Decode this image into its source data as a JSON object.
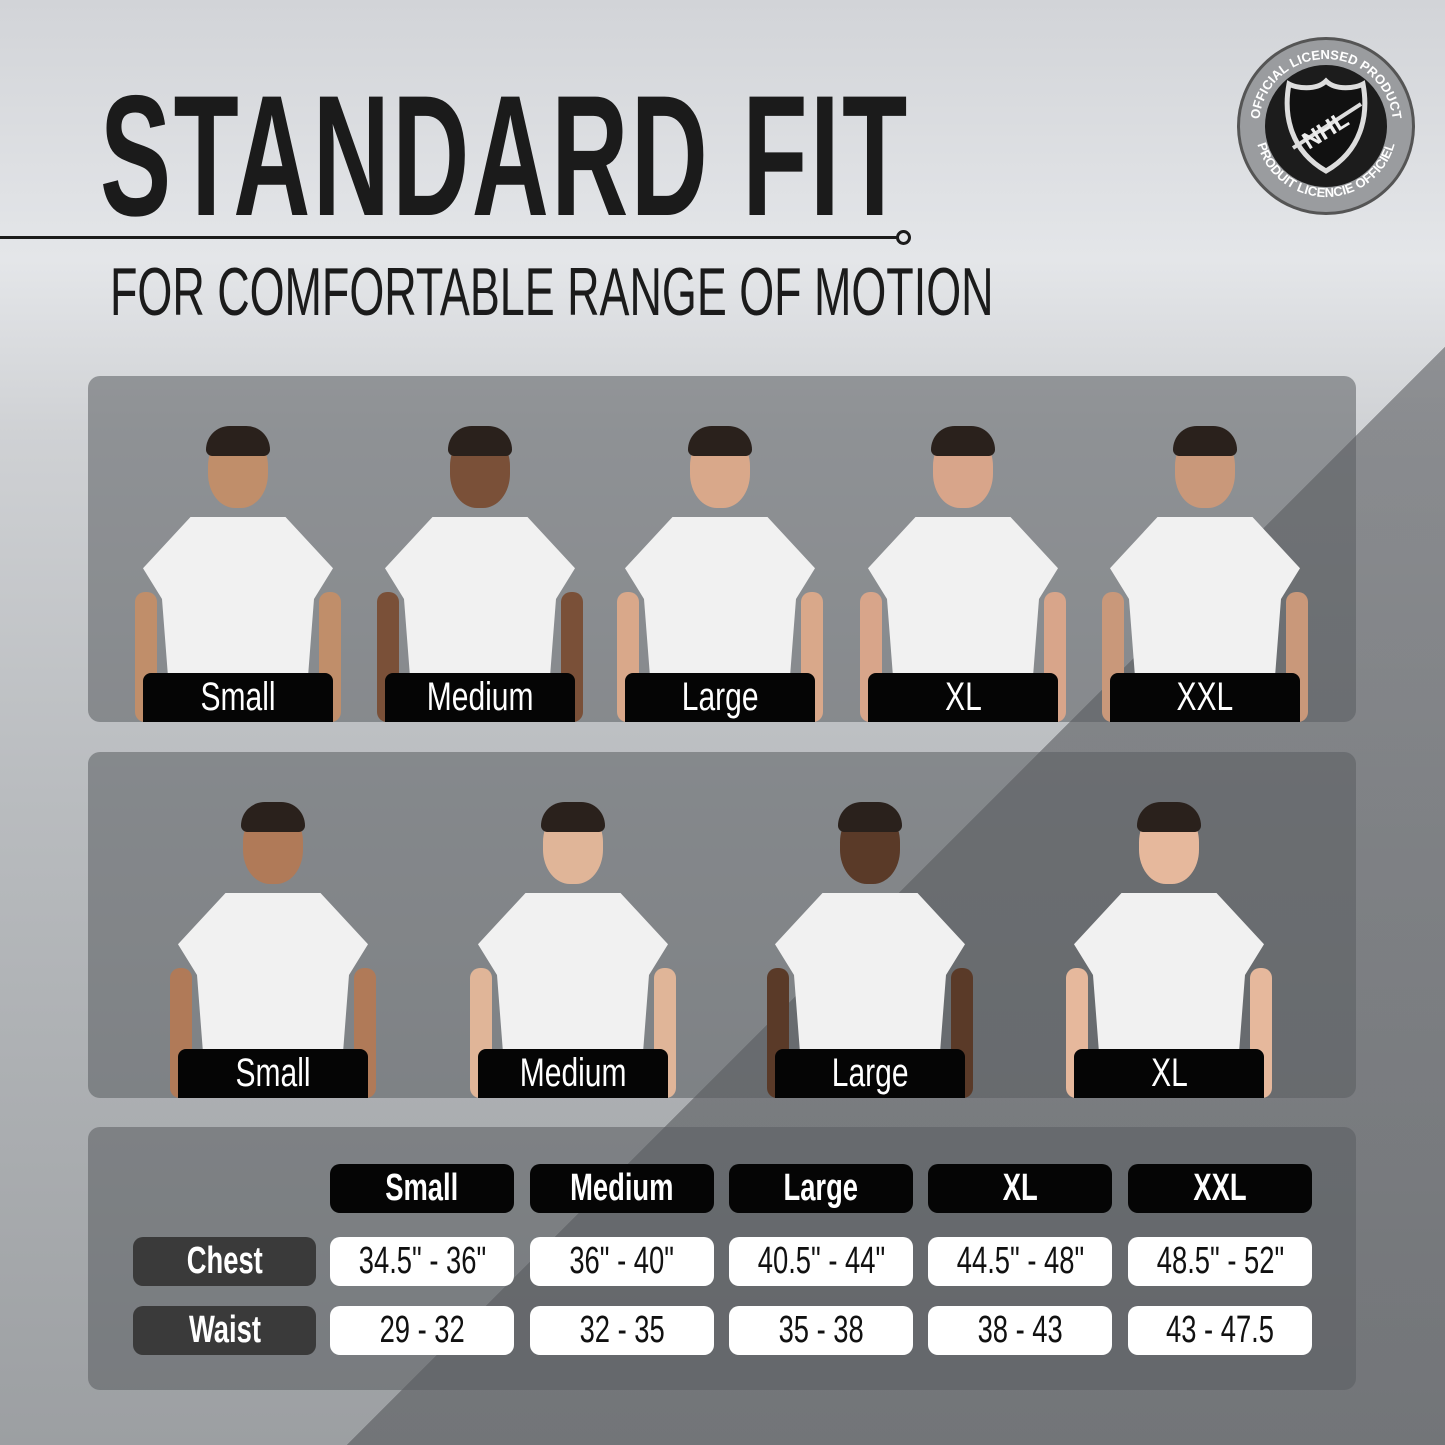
{
  "header": {
    "title": "STANDARD FIT",
    "subtitle": "FOR COMFORTABLE RANGE OF MOTION"
  },
  "badge": {
    "text_top": "OFFICIAL LICENSED PRODUCT",
    "text_bottom": "PRODUIT LICENCIE OFFICIEL",
    "logo": "NHL"
  },
  "men": {
    "sizes": [
      "Small",
      "Medium",
      "Large",
      "XL",
      "XXL"
    ],
    "skin": [
      "#c08e6a",
      "#7a5038",
      "#d9a88a",
      "#d8a58a",
      "#c9987a"
    ]
  },
  "women": {
    "sizes": [
      "Small",
      "Medium",
      "Large",
      "XL"
    ],
    "skin": [
      "#b07a58",
      "#e0b598",
      "#5a3a28",
      "#e6b89c"
    ]
  },
  "size_table": {
    "columns": [
      "Small",
      "Medium",
      "Large",
      "XL",
      "XXL"
    ],
    "rows": [
      {
        "label": "Chest",
        "values": [
          "34.5\" - 36\"",
          "36\" - 40\"",
          "40.5\" - 44\"",
          "44.5\" - 48\"",
          "48.5\" - 52\""
        ]
      },
      {
        "label": "Waist",
        "values": [
          "29 - 32",
          "32 - 35",
          "35 - 38",
          "38 - 43",
          "43 - 47.5"
        ]
      }
    ]
  }
}
